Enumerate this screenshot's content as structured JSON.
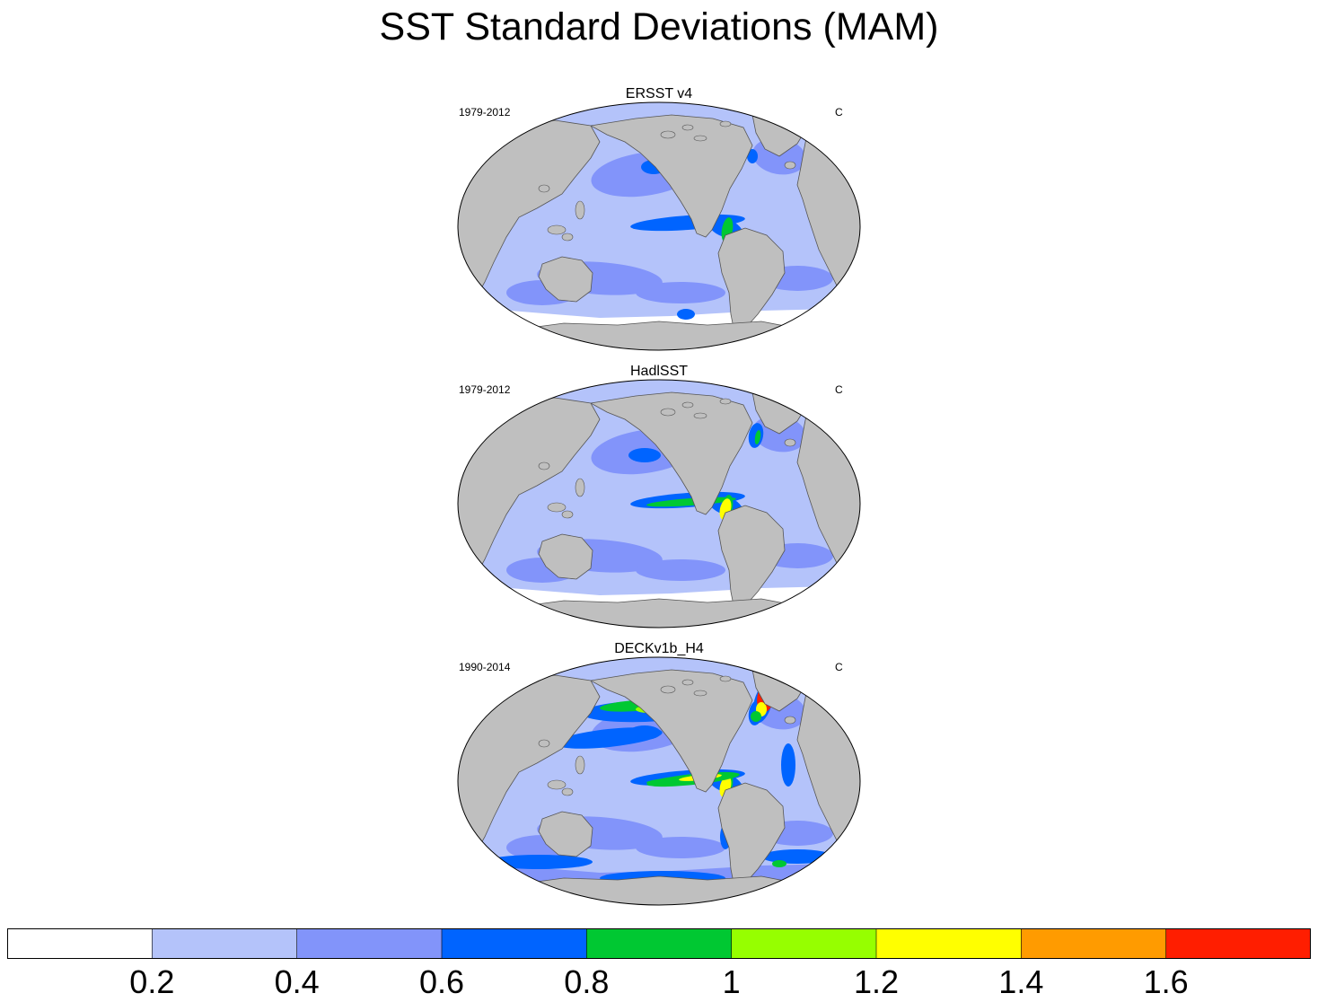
{
  "title": "SST Standard Deviations (MAM)",
  "panels": [
    {
      "title": "ERSST v4",
      "period": "1979-2012",
      "units": "C",
      "intensity": 1
    },
    {
      "title": "HadlSST",
      "period": "1979-2012",
      "units": "C",
      "intensity": 2
    },
    {
      "title": "DECKv1b_H4",
      "period": "1990-2014",
      "units": "C",
      "intensity": 3
    }
  ],
  "colorbar": {
    "colors": [
      "#ffffff",
      "#b4c3fa",
      "#8294fa",
      "#0064ff",
      "#00c832",
      "#96ff00",
      "#ffff00",
      "#ff9b00",
      "#ff1e00"
    ],
    "tick_values": [
      0.2,
      0.4,
      0.6,
      0.8,
      1,
      1.2,
      1.4,
      1.6
    ],
    "tick_labels": [
      "0.2",
      "0.4",
      "0.6",
      "0.8",
      "1",
      "1.2",
      "1.4",
      "1.6"
    ]
  },
  "map_colors": {
    "land": "#bfbfbf",
    "ocean_background": "#b4c3fa"
  }
}
